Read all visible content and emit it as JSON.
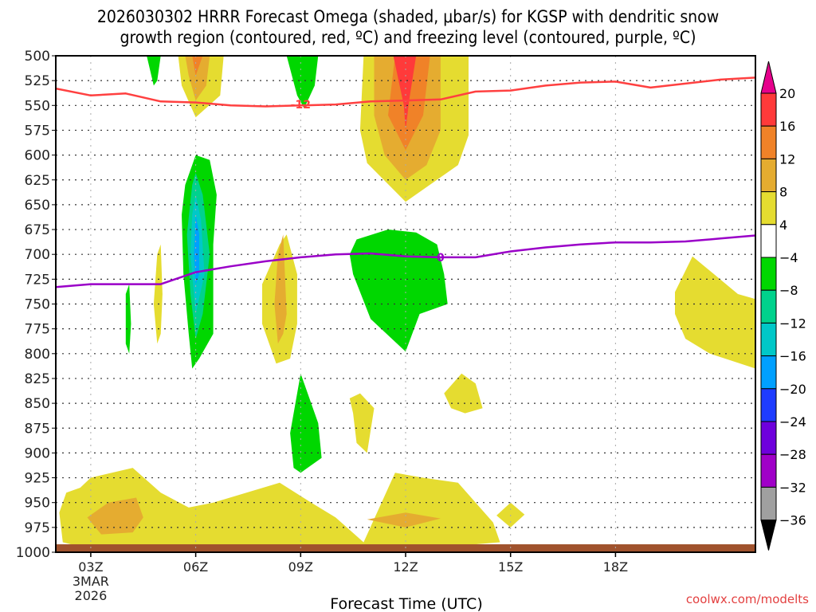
{
  "chart_data": {
    "type": "heatmap",
    "title_line1": "2026030302 HRRR Forecast Omega (shaded, μbar/s) for KGSP with dendritic snow",
    "title_line2": "growth region (contoured, red, ºC) and freezing level (contoured, purple, ºC)",
    "xlabel": "Forecast Time (UTC)",
    "ylabel": "",
    "credit": "coolwx.com/modelts",
    "x_unit": "hours since 03Z 3MAR2026",
    "xlim": [
      -1,
      19
    ],
    "ylim": [
      1000,
      500
    ],
    "y_ticks": [
      500,
      525,
      550,
      575,
      600,
      625,
      650,
      675,
      700,
      725,
      750,
      775,
      800,
      825,
      850,
      875,
      900,
      925,
      950,
      975,
      1000
    ],
    "x_ticks": [
      {
        "value": 0,
        "label": "03Z",
        "sub1": "3MAR",
        "sub2": "2026"
      },
      {
        "value": 3,
        "label": "06Z",
        "sub1": "",
        "sub2": ""
      },
      {
        "value": 6,
        "label": "09Z",
        "sub1": "",
        "sub2": ""
      },
      {
        "value": 9,
        "label": "12Z",
        "sub1": "",
        "sub2": ""
      },
      {
        "value": 12,
        "label": "15Z",
        "sub1": "",
        "sub2": ""
      },
      {
        "value": 15,
        "label": "18Z",
        "sub1": "",
        "sub2": ""
      }
    ],
    "grid": true,
    "colorbar": {
      "levels": [
        "20",
        "16",
        "12",
        "8",
        "4",
        "−4",
        "−8",
        "−12",
        "−16",
        "−20",
        "−24",
        "−28",
        "−32",
        "−36"
      ],
      "colors": [
        "#ff3a3a",
        "#f08228",
        "#e5ac30",
        "#e5dc30",
        "#ffffff",
        "#00d700",
        "#00d28c",
        "#00c8c8",
        "#00a0ff",
        "#1e3cff",
        "#6e00dc",
        "#a000c8",
        "#a0a0a0"
      ],
      "over_color": "#e6008c",
      "under_color": "#000000",
      "placement": "right"
    },
    "shaded_regions": [
      {
        "name": "uplift-12z-core",
        "color": "#e5dc30",
        "points": [
          [
            7.8,
            500
          ],
          [
            10.8,
            500
          ],
          [
            10.8,
            580
          ],
          [
            10.5,
            610
          ],
          [
            9,
            647
          ],
          [
            7.9,
            608
          ],
          [
            7.7,
            575
          ]
        ]
      },
      {
        "name": "uplift-12z-core",
        "color": "#e5ac30",
        "points": [
          [
            8.1,
            500
          ],
          [
            10.0,
            500
          ],
          [
            10.0,
            575
          ],
          [
            9.6,
            610
          ],
          [
            9,
            625
          ],
          [
            8.4,
            600
          ],
          [
            8.1,
            560
          ]
        ]
      },
      {
        "name": "uplift-12z-core",
        "color": "#f08228",
        "points": [
          [
            8.7,
            500
          ],
          [
            9.7,
            500
          ],
          [
            9.5,
            560
          ],
          [
            9,
            595
          ],
          [
            8.5,
            560
          ]
        ]
      },
      {
        "name": "uplift-12z-core",
        "color": "#ff3a3a",
        "points": [
          [
            8.65,
            500
          ],
          [
            9.3,
            500
          ],
          [
            9.1,
            545
          ],
          [
            9,
            575
          ],
          [
            8.95,
            550
          ]
        ]
      },
      {
        "name": "uplift-06z-top",
        "color": "#e5dc30",
        "points": [
          [
            2.5,
            500
          ],
          [
            3.8,
            500
          ],
          [
            3.7,
            540
          ],
          [
            3,
            562
          ],
          [
            2.6,
            530
          ]
        ]
      },
      {
        "name": "uplift-06z-top",
        "color": "#e5ac30",
        "points": [
          [
            2.7,
            500
          ],
          [
            3.4,
            500
          ],
          [
            3.3,
            530
          ],
          [
            3,
            545
          ],
          [
            2.8,
            520
          ]
        ]
      },
      {
        "name": "uplift-06z-top",
        "color": "#f08228",
        "points": [
          [
            2.9,
            500
          ],
          [
            3.2,
            500
          ],
          [
            3,
            520
          ]
        ]
      },
      {
        "name": "sink-05z-top",
        "color": "#00d700",
        "points": [
          [
            1.6,
            500
          ],
          [
            2.0,
            500
          ],
          [
            1.9,
            525
          ],
          [
            1.8,
            530
          ]
        ]
      },
      {
        "name": "sink-09z-top",
        "color": "#00d700",
        "points": [
          [
            5.6,
            500
          ],
          [
            6.5,
            500
          ],
          [
            6.4,
            530
          ],
          [
            6.1,
            553
          ],
          [
            5.9,
            540
          ]
        ]
      },
      {
        "name": "sink-06z-column",
        "color": "#00d700",
        "points": [
          [
            2.7,
            630
          ],
          [
            3.0,
            600
          ],
          [
            3.4,
            605
          ],
          [
            3.6,
            640
          ],
          [
            3.5,
            690
          ],
          [
            3.5,
            780
          ],
          [
            3.1,
            805
          ],
          [
            2.9,
            815
          ],
          [
            2.8,
            780
          ],
          [
            2.65,
            720
          ],
          [
            2.6,
            660
          ]
        ]
      },
      {
        "name": "sink-06z-column",
        "color": "#00d28c",
        "points": [
          [
            2.9,
            630
          ],
          [
            3.0,
            618
          ],
          [
            3.2,
            640
          ],
          [
            3.4,
            700
          ],
          [
            3.2,
            760
          ],
          [
            3.0,
            785
          ],
          [
            2.85,
            740
          ],
          [
            2.75,
            680
          ]
        ]
      },
      {
        "name": "sink-06z-column",
        "color": "#00c8c8",
        "points": [
          [
            3.0,
            640
          ],
          [
            3.15,
            665
          ],
          [
            3.25,
            720
          ],
          [
            3.0,
            760
          ],
          [
            2.85,
            700
          ],
          [
            2.9,
            660
          ]
        ]
      },
      {
        "name": "sink-06z-column",
        "color": "#00a0ff",
        "points": [
          [
            3.0,
            660
          ],
          [
            3.1,
            680
          ],
          [
            3.1,
            720
          ],
          [
            3.0,
            730
          ],
          [
            2.95,
            700
          ]
        ]
      },
      {
        "name": "sink-12z-mid",
        "color": "#00d700",
        "points": [
          [
            7.6,
            685
          ],
          [
            8.5,
            675
          ],
          [
            9.3,
            678
          ],
          [
            9.9,
            690
          ],
          [
            10.1,
            720
          ],
          [
            10.2,
            750
          ],
          [
            9.4,
            760
          ],
          [
            9,
            798
          ],
          [
            8.0,
            765
          ],
          [
            7.5,
            720
          ],
          [
            7.4,
            700
          ]
        ]
      },
      {
        "name": "uplift-08z",
        "color": "#e5dc30",
        "points": [
          [
            4.9,
            730
          ],
          [
            5.4,
            690
          ],
          [
            5.6,
            680
          ],
          [
            5.9,
            720
          ],
          [
            5.9,
            770
          ],
          [
            5.7,
            805
          ],
          [
            5.3,
            810
          ],
          [
            4.9,
            770
          ]
        ]
      },
      {
        "name": "uplift-08z",
        "color": "#e5ac30",
        "points": [
          [
            5.25,
            750
          ],
          [
            5.35,
            700
          ],
          [
            5.5,
            680
          ],
          [
            5.6,
            760
          ],
          [
            5.5,
            780
          ],
          [
            5.35,
            790
          ]
        ]
      },
      {
        "name": "uplift-05z",
        "color": "#e5dc30",
        "points": [
          [
            1.9,
            700
          ],
          [
            2.0,
            690
          ],
          [
            2.05,
            740
          ],
          [
            2.0,
            780
          ],
          [
            1.9,
            790
          ],
          [
            1.8,
            750
          ]
        ]
      },
      {
        "name": "sink-04z",
        "color": "#00d700",
        "points": [
          [
            1.0,
            740
          ],
          [
            1.1,
            730
          ],
          [
            1.15,
            770
          ],
          [
            1.1,
            800
          ],
          [
            1.0,
            790
          ]
        ]
      },
      {
        "name": "sink-09z-low",
        "color": "#00d700",
        "points": [
          [
            5.7,
            880
          ],
          [
            6.0,
            820
          ],
          [
            6.5,
            870
          ],
          [
            6.6,
            905
          ],
          [
            6.0,
            920
          ],
          [
            5.8,
            915
          ]
        ]
      },
      {
        "name": "uplift-11z-low",
        "color": "#e5dc30",
        "points": [
          [
            7.4,
            845
          ],
          [
            7.7,
            840
          ],
          [
            8.1,
            855
          ],
          [
            7.9,
            900
          ],
          [
            7.6,
            890
          ],
          [
            7.5,
            860
          ]
        ]
      },
      {
        "name": "uplift-13z-low",
        "color": "#e5dc30",
        "points": [
          [
            10.1,
            840
          ],
          [
            10.6,
            820
          ],
          [
            11.0,
            830
          ],
          [
            11.2,
            855
          ],
          [
            10.7,
            860
          ],
          [
            10.3,
            855
          ]
        ]
      },
      {
        "name": "uplift-19z",
        "color": "#e5dc30",
        "points": [
          [
            16.7,
            738
          ],
          [
            17.2,
            702
          ],
          [
            18.5,
            740
          ],
          [
            19.0,
            745
          ],
          [
            19.0,
            815
          ],
          [
            17.7,
            800
          ],
          [
            17.0,
            785
          ],
          [
            16.7,
            760
          ]
        ]
      },
      {
        "name": "uplift-boundary-layer",
        "color": "#e5dc30",
        "points": [
          [
            -0.9,
            960
          ],
          [
            -0.7,
            940
          ],
          [
            -0.3,
            935
          ],
          [
            0,
            925
          ],
          [
            1.2,
            915
          ],
          [
            2.0,
            940
          ],
          [
            2.8,
            955
          ],
          [
            3.5,
            950
          ],
          [
            5.4,
            930
          ],
          [
            6.3,
            950
          ],
          [
            7.0,
            965
          ],
          [
            7.8,
            990
          ],
          [
            8.7,
            920
          ],
          [
            9.5,
            925
          ],
          [
            10.5,
            930
          ],
          [
            11.5,
            970
          ],
          [
            11.7,
            990
          ],
          [
            10,
            995
          ],
          [
            8,
            995
          ],
          [
            6,
            997
          ],
          [
            4,
            997
          ],
          [
            2,
            997
          ],
          [
            0,
            997
          ],
          [
            -0.8,
            990
          ]
        ]
      },
      {
        "name": "uplift-boundary-core",
        "color": "#e5ac30",
        "points": [
          [
            -0.1,
            965
          ],
          [
            0.5,
            950
          ],
          [
            1.3,
            945
          ],
          [
            1.5,
            965
          ],
          [
            1.2,
            980
          ],
          [
            0.3,
            982
          ]
        ]
      },
      {
        "name": "uplift-12z-boundary-core",
        "color": "#e5ac30",
        "points": [
          [
            7.9,
            967
          ],
          [
            9,
            960
          ],
          [
            10,
            966
          ],
          [
            9,
            975
          ]
        ]
      },
      {
        "name": "uplift-15z-low",
        "color": "#e5dc30",
        "points": [
          [
            11.6,
            963
          ],
          [
            12.0,
            950
          ],
          [
            12.4,
            962
          ],
          [
            12.0,
            975
          ]
        ]
      }
    ],
    "terrain": {
      "color": "#a0522d",
      "top_pressure": 992
    },
    "contours": [
      {
        "name": "dendritic-snow-growth",
        "label": "-12",
        "units": "ºC",
        "color": "#ff4040",
        "x": [
          -1,
          0,
          1,
          1.5,
          2,
          3,
          4,
          5,
          6,
          7,
          8,
          9,
          10,
          11,
          12,
          13,
          14,
          15,
          16,
          17,
          18,
          19
        ],
        "p": [
          533,
          540,
          538,
          542,
          546,
          547,
          550,
          551,
          550,
          549,
          546,
          545,
          544,
          536,
          535,
          530,
          527,
          526,
          532,
          528,
          524,
          522
        ],
        "label_at": [
          6,
          549
        ]
      },
      {
        "name": "freezing-level",
        "label": "0",
        "units": "ºC",
        "color": "#9a00c8",
        "x": [
          -1,
          0,
          1,
          2,
          3,
          4,
          5,
          6,
          7,
          8,
          9,
          10,
          11,
          12,
          13,
          14,
          15,
          16,
          17,
          18,
          19
        ],
        "p": [
          733,
          730,
          730,
          730,
          718,
          712,
          707,
          703,
          700,
          699,
          702,
          703,
          703,
          697,
          693,
          690,
          688,
          688,
          687,
          684,
          681
        ],
        "label_at": [
          10,
          703
        ]
      }
    ]
  }
}
